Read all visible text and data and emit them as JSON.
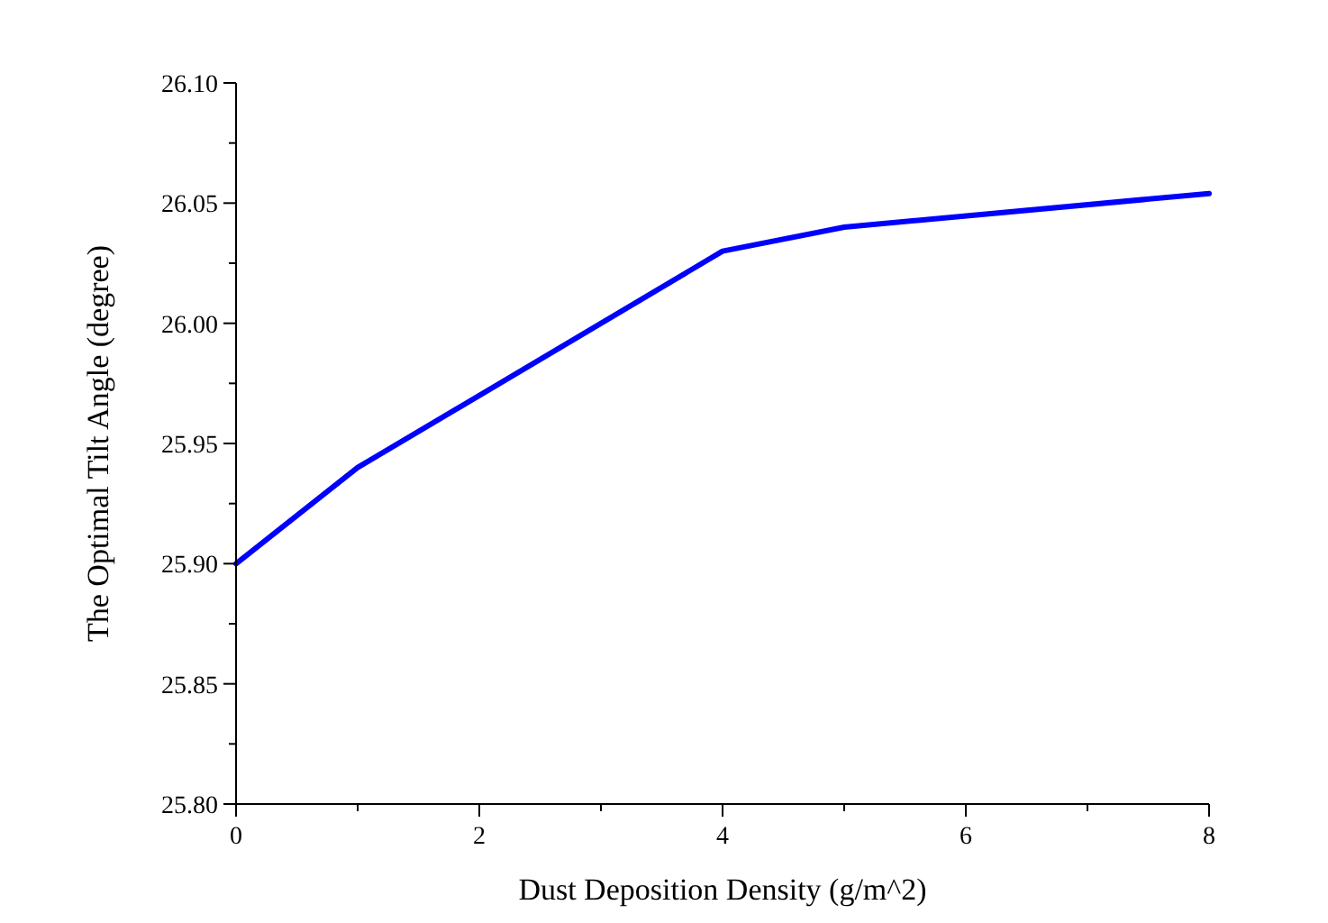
{
  "chart_data": {
    "type": "line",
    "xlabel": "Dust Deposition Density (g/m^2)",
    "ylabel": "The Optimal Tilt Angle (degree)",
    "x": [
      0,
      1,
      4,
      5,
      8
    ],
    "series": [
      {
        "color": "#0000ff",
        "values": [
          25.9,
          25.94,
          26.03,
          26.04,
          26.054
        ]
      }
    ],
    "xlim": [
      0,
      8
    ],
    "xticks": [
      0,
      {
        "value": 1,
        "label": null
      },
      2,
      {
        "value": 3,
        "label": null
      },
      4,
      {
        "value": 5,
        "label": null
      },
      6,
      {
        "value": 7,
        "label": null
      },
      8
    ],
    "ylim": [
      25.8,
      26.1
    ],
    "yticks": [
      {
        "value": 25.8,
        "label": "25.80"
      },
      {
        "value": 25.825,
        "label": null
      },
      {
        "value": 25.85,
        "label": "25.85"
      },
      {
        "value": 25.875,
        "label": null
      },
      {
        "value": 25.9,
        "label": "25.90"
      },
      {
        "value": 25.925,
        "label": null
      },
      {
        "value": 25.95,
        "label": "25.95"
      },
      {
        "value": 25.975,
        "label": null
      },
      {
        "value": 26.0,
        "label": "26.00"
      },
      {
        "value": 26.025,
        "label": null
      },
      {
        "value": 26.05,
        "label": "26.05"
      },
      {
        "value": 26.075,
        "label": null
      },
      {
        "value": 26.1,
        "label": "26.10"
      }
    ],
    "grid": false,
    "marker": "none",
    "line_style": "solid"
  }
}
